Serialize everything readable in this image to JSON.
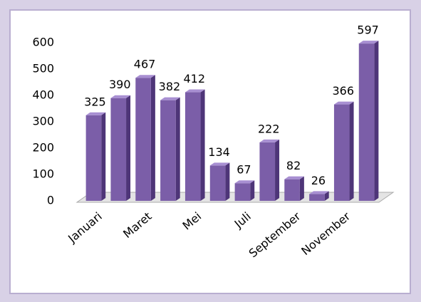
{
  "chart_data": {
    "type": "bar3d",
    "categories": [
      "Januari",
      null,
      "Maret",
      null,
      "Mei",
      null,
      "Juli",
      null,
      "September",
      null,
      "November",
      null
    ],
    "values": [
      325,
      390,
      467,
      382,
      412,
      134,
      67,
      222,
      82,
      26,
      366,
      597
    ],
    "color": "#7b5ea8",
    "ylim": [
      0,
      600
    ],
    "yticks": [
      0,
      100,
      200,
      300,
      400,
      500,
      600
    ],
    "grid": false
  }
}
